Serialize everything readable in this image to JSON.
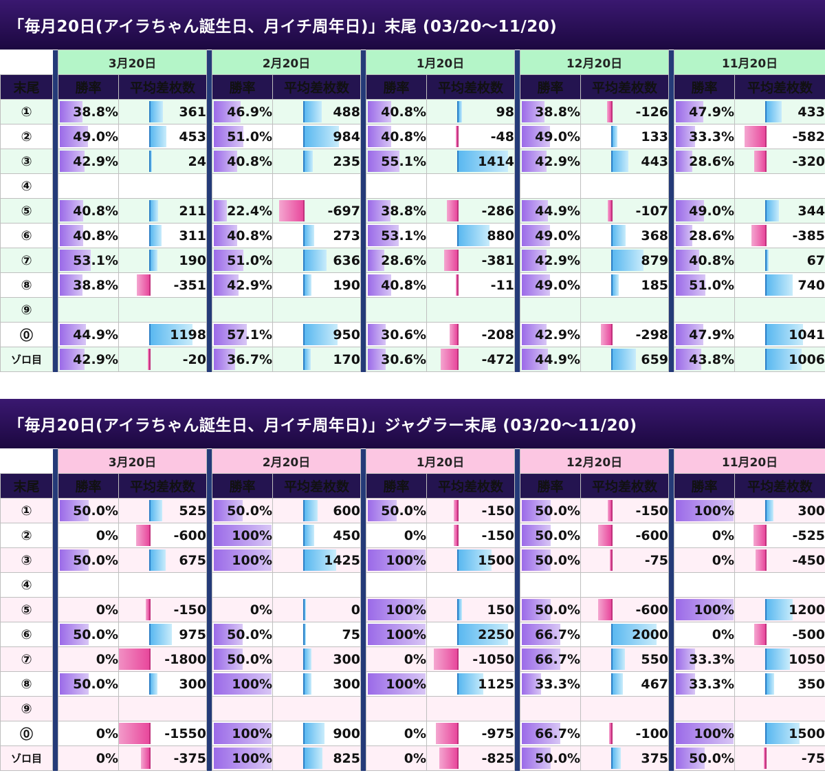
{
  "section1": {
    "title": "「毎月20日(アイラちゃん誕生日、月イチ周年日)」末尾 (03/20〜11/20)",
    "theme": {
      "date_bg": "#b4f5c8",
      "alt_row": "#e9fbef"
    },
    "dates": [
      "3月20日",
      "2月20日",
      "1月20日",
      "12月20日",
      "11月20日"
    ],
    "col_tail": "末尾",
    "col_rate": "勝率",
    "col_diff": "平均差枚数",
    "rows": [
      {
        "label": "①",
        "cells": [
          [
            "38.8%",
            361
          ],
          [
            "46.9%",
            488
          ],
          [
            "40.8%",
            98
          ],
          [
            "38.8%",
            -126
          ],
          [
            "47.9%",
            433
          ]
        ]
      },
      {
        "label": "②",
        "cells": [
          [
            "49.0%",
            453
          ],
          [
            "51.0%",
            984
          ],
          [
            "40.8%",
            -48
          ],
          [
            "49.0%",
            133
          ],
          [
            "33.3%",
            -582
          ]
        ]
      },
      {
        "label": "③",
        "cells": [
          [
            "42.9%",
            24
          ],
          [
            "40.8%",
            235
          ],
          [
            "55.1%",
            1414
          ],
          [
            "42.9%",
            443
          ],
          [
            "28.6%",
            -320
          ]
        ]
      },
      {
        "label": "④",
        "cells": [
          [
            "",
            null
          ],
          [
            "",
            null
          ],
          [
            "",
            null
          ],
          [
            "",
            null
          ],
          [
            "",
            null
          ]
        ]
      },
      {
        "label": "⑤",
        "cells": [
          [
            "40.8%",
            211
          ],
          [
            "22.4%",
            -697
          ],
          [
            "38.8%",
            -286
          ],
          [
            "44.9%",
            -107
          ],
          [
            "49.0%",
            344
          ]
        ]
      },
      {
        "label": "⑥",
        "cells": [
          [
            "40.8%",
            311
          ],
          [
            "40.8%",
            273
          ],
          [
            "53.1%",
            880
          ],
          [
            "49.0%",
            368
          ],
          [
            "28.6%",
            -385
          ]
        ]
      },
      {
        "label": "⑦",
        "cells": [
          [
            "53.1%",
            190
          ],
          [
            "51.0%",
            636
          ],
          [
            "28.6%",
            -381
          ],
          [
            "42.9%",
            879
          ],
          [
            "40.8%",
            67
          ]
        ]
      },
      {
        "label": "⑧",
        "cells": [
          [
            "38.8%",
            -351
          ],
          [
            "42.9%",
            190
          ],
          [
            "40.8%",
            -11
          ],
          [
            "49.0%",
            185
          ],
          [
            "51.0%",
            740
          ]
        ]
      },
      {
        "label": "⑨",
        "cells": [
          [
            "",
            null
          ],
          [
            "",
            null
          ],
          [
            "",
            null
          ],
          [
            "",
            null
          ],
          [
            "",
            null
          ]
        ]
      },
      {
        "label": "⓪",
        "cells": [
          [
            "44.9%",
            1198
          ],
          [
            "57.1%",
            950
          ],
          [
            "30.6%",
            -208
          ],
          [
            "42.9%",
            -298
          ],
          [
            "47.9%",
            1041
          ]
        ]
      },
      {
        "label": "ゾロ目",
        "cells": [
          [
            "42.9%",
            -20
          ],
          [
            "36.7%",
            170
          ],
          [
            "30.6%",
            -472
          ],
          [
            "44.9%",
            659
          ],
          [
            "43.8%",
            1006
          ]
        ]
      }
    ]
  },
  "section2": {
    "title": "「毎月20日(アイラちゃん誕生日、月イチ周年日)」ジャグラー末尾 (03/20〜11/20)",
    "theme": {
      "date_bg": "#fcc6e2",
      "alt_row": "#fff0f7"
    },
    "dates": [
      "3月20日",
      "2月20日",
      "1月20日",
      "12月20日",
      "11月20日"
    ],
    "col_tail": "末尾",
    "col_rate": "勝率",
    "col_diff": "平均差枚数",
    "rows": [
      {
        "label": "①",
        "cells": [
          [
            "50.0%",
            525
          ],
          [
            "50.0%",
            600
          ],
          [
            "50.0%",
            -150
          ],
          [
            "50.0%",
            -150
          ],
          [
            "100%",
            300
          ]
        ]
      },
      {
        "label": "②",
        "cells": [
          [
            "0%",
            -600
          ],
          [
            "100%",
            450
          ],
          [
            "0%",
            -150
          ],
          [
            "50.0%",
            -600
          ],
          [
            "0%",
            -525
          ]
        ]
      },
      {
        "label": "③",
        "cells": [
          [
            "50.0%",
            675
          ],
          [
            "100%",
            1425
          ],
          [
            "100%",
            1500
          ],
          [
            "50.0%",
            -75
          ],
          [
            "0%",
            -450
          ]
        ]
      },
      {
        "label": "④",
        "cells": [
          [
            "",
            null
          ],
          [
            "",
            null
          ],
          [
            "",
            null
          ],
          [
            "",
            null
          ],
          [
            "",
            null
          ]
        ]
      },
      {
        "label": "⑤",
        "cells": [
          [
            "0%",
            -150
          ],
          [
            "0%",
            0
          ],
          [
            "100%",
            150
          ],
          [
            "50.0%",
            -600
          ],
          [
            "100%",
            1200
          ]
        ]
      },
      {
        "label": "⑥",
        "cells": [
          [
            "50.0%",
            975
          ],
          [
            "50.0%",
            75
          ],
          [
            "100%",
            2250
          ],
          [
            "66.7%",
            2000
          ],
          [
            "0%",
            -500
          ]
        ]
      },
      {
        "label": "⑦",
        "cells": [
          [
            "0%",
            -1800
          ],
          [
            "50.0%",
            300
          ],
          [
            "0%",
            -1050
          ],
          [
            "66.7%",
            550
          ],
          [
            "33.3%",
            1050
          ]
        ]
      },
      {
        "label": "⑧",
        "cells": [
          [
            "50.0%",
            300
          ],
          [
            "100%",
            300
          ],
          [
            "100%",
            1125
          ],
          [
            "33.3%",
            467
          ],
          [
            "33.3%",
            350
          ]
        ]
      },
      {
        "label": "⑨",
        "cells": [
          [
            "",
            null
          ],
          [
            "",
            null
          ],
          [
            "",
            null
          ],
          [
            "",
            null
          ],
          [
            "",
            null
          ]
        ]
      },
      {
        "label": "⓪",
        "cells": [
          [
            "0%",
            -1550
          ],
          [
            "100%",
            900
          ],
          [
            "0%",
            -975
          ],
          [
            "66.7%",
            -100
          ],
          [
            "100%",
            1500
          ]
        ]
      },
      {
        "label": "ゾロ目",
        "cells": [
          [
            "0%",
            -375
          ],
          [
            "100%",
            825
          ],
          [
            "0%",
            -825
          ],
          [
            "50.0%",
            375
          ],
          [
            "50.0%",
            -75
          ]
        ]
      }
    ]
  }
}
